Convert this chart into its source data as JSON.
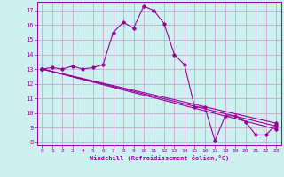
{
  "title": "",
  "xlabel": "Windchill (Refroidissement éolien,°C)",
  "bg_color": "#cff0f0",
  "line_color": "#990099",
  "grid_color": "#cc99cc",
  "ylim": [
    7.8,
    17.6
  ],
  "xlim": [
    -0.5,
    23.5
  ],
  "yticks": [
    8,
    9,
    10,
    11,
    12,
    13,
    14,
    15,
    16,
    17
  ],
  "xticks": [
    0,
    1,
    2,
    3,
    4,
    5,
    6,
    7,
    8,
    9,
    10,
    11,
    12,
    13,
    14,
    15,
    16,
    17,
    18,
    19,
    20,
    21,
    22,
    23
  ],
  "series1_x": [
    0,
    1,
    2,
    3,
    4,
    5,
    6,
    7,
    8,
    9,
    10,
    11,
    12,
    13,
    14,
    15,
    16,
    17,
    18,
    19,
    20,
    21,
    22,
    23
  ],
  "series1_y": [
    13.0,
    13.1,
    13.0,
    13.2,
    13.0,
    13.1,
    13.3,
    15.5,
    16.2,
    15.8,
    17.3,
    17.0,
    16.1,
    14.0,
    13.3,
    10.4,
    10.4,
    8.1,
    9.8,
    9.8,
    9.4,
    8.5,
    8.5,
    9.2
  ],
  "series2_x": [
    0,
    23
  ],
  "series2_y": [
    13.0,
    9.3
  ],
  "series3_x": [
    0,
    23
  ],
  "series3_y": [
    13.0,
    9.1
  ],
  "series4_x": [
    0,
    23
  ],
  "series4_y": [
    13.0,
    8.9
  ]
}
